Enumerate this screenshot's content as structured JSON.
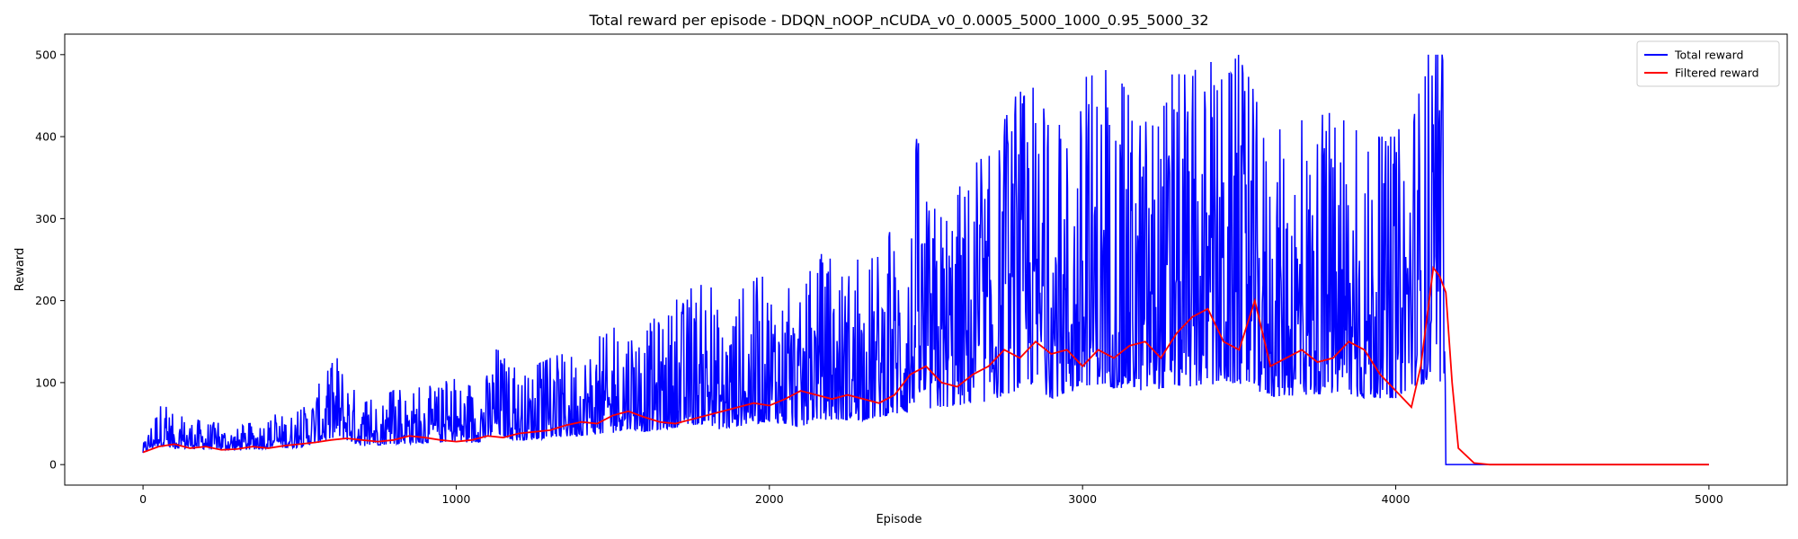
{
  "chart_data": {
    "type": "line",
    "title": "Total reward per episode - DDQN_nOOP_nCUDA_v0_0.0005_5000_1000_0.95_5000_32",
    "xlabel": "Episode",
    "ylabel": "Reward",
    "xlim": [
      -250,
      5250
    ],
    "ylim": [
      -25,
      525
    ],
    "xticks": [
      0,
      1000,
      2000,
      3000,
      4000,
      5000
    ],
    "yticks": [
      0,
      100,
      200,
      300,
      400,
      500
    ],
    "grid": false,
    "legend_position": "top-right",
    "series": [
      {
        "name": "Total reward",
        "color": "#0000ff",
        "description_points": {
          "x": [
            0,
            50,
            100,
            200,
            300,
            400,
            500,
            600,
            620,
            700,
            800,
            900,
            1000,
            1050,
            1100,
            1130,
            1200,
            1300,
            1400,
            1500,
            1550,
            1560,
            1600,
            1700,
            1800,
            1850,
            1900,
            2000,
            2100,
            2150,
            2200,
            2300,
            2400,
            2450,
            2470,
            2500,
            2600,
            2700,
            2800,
            2830,
            2900,
            3000,
            3030,
            3100,
            3200,
            3300,
            3330,
            3400,
            3500,
            3600,
            3700,
            3800,
            3900,
            4000,
            4050,
            4100,
            4120,
            4150,
            4160,
            4200,
            5000
          ],
          "y": [
            25,
            80,
            60,
            55,
            45,
            60,
            65,
            120,
            140,
            75,
            90,
            95,
            105,
            95,
            115,
            152,
            110,
            130,
            145,
            165,
            190,
            190,
            170,
            200,
            230,
            180,
            210,
            240,
            200,
            260,
            250,
            250,
            290,
            300,
            410,
            320,
            350,
            380,
            460,
            500,
            400,
            455,
            500,
            470,
            450,
            480,
            475,
            490,
            500,
            410,
            420,
            430,
            400,
            400,
            480,
            500,
            500,
            500,
            0,
            0,
            0
          ]
        }
      },
      {
        "name": "Filtered reward",
        "color": "#ff0000",
        "x": [
          0,
          50,
          100,
          150,
          200,
          250,
          300,
          350,
          400,
          450,
          500,
          550,
          600,
          650,
          700,
          750,
          800,
          850,
          900,
          950,
          1000,
          1050,
          1100,
          1150,
          1200,
          1250,
          1300,
          1350,
          1400,
          1450,
          1500,
          1550,
          1600,
          1650,
          1700,
          1750,
          1800,
          1850,
          1900,
          1950,
          2000,
          2050,
          2100,
          2150,
          2200,
          2250,
          2300,
          2350,
          2400,
          2450,
          2500,
          2550,
          2600,
          2650,
          2700,
          2750,
          2800,
          2850,
          2900,
          2950,
          3000,
          3050,
          3100,
          3150,
          3200,
          3250,
          3300,
          3350,
          3400,
          3450,
          3500,
          3550,
          3600,
          3650,
          3700,
          3750,
          3800,
          3850,
          3900,
          3950,
          4000,
          4050,
          4080,
          4100,
          4120,
          4140,
          4160,
          4180,
          4200,
          4250,
          4300,
          5000
        ],
        "y": [
          15,
          22,
          25,
          20,
          22,
          18,
          19,
          22,
          20,
          23,
          25,
          27,
          30,
          32,
          30,
          28,
          30,
          35,
          33,
          30,
          28,
          30,
          35,
          33,
          38,
          40,
          42,
          48,
          52,
          50,
          60,
          65,
          58,
          52,
          50,
          55,
          60,
          65,
          70,
          75,
          72,
          80,
          90,
          85,
          80,
          85,
          80,
          75,
          85,
          110,
          120,
          100,
          95,
          110,
          120,
          140,
          130,
          150,
          135,
          140,
          120,
          140,
          130,
          145,
          150,
          130,
          160,
          180,
          190,
          150,
          140,
          200,
          120,
          130,
          140,
          125,
          130,
          150,
          140,
          110,
          90,
          70,
          120,
          180,
          240,
          230,
          210,
          100,
          20,
          2,
          0,
          0
        ]
      }
    ],
    "note_on_total_reward": "Noisy per-episode rewards ranging 9–500 between episodes 0–4160, then 0 until 5000."
  }
}
